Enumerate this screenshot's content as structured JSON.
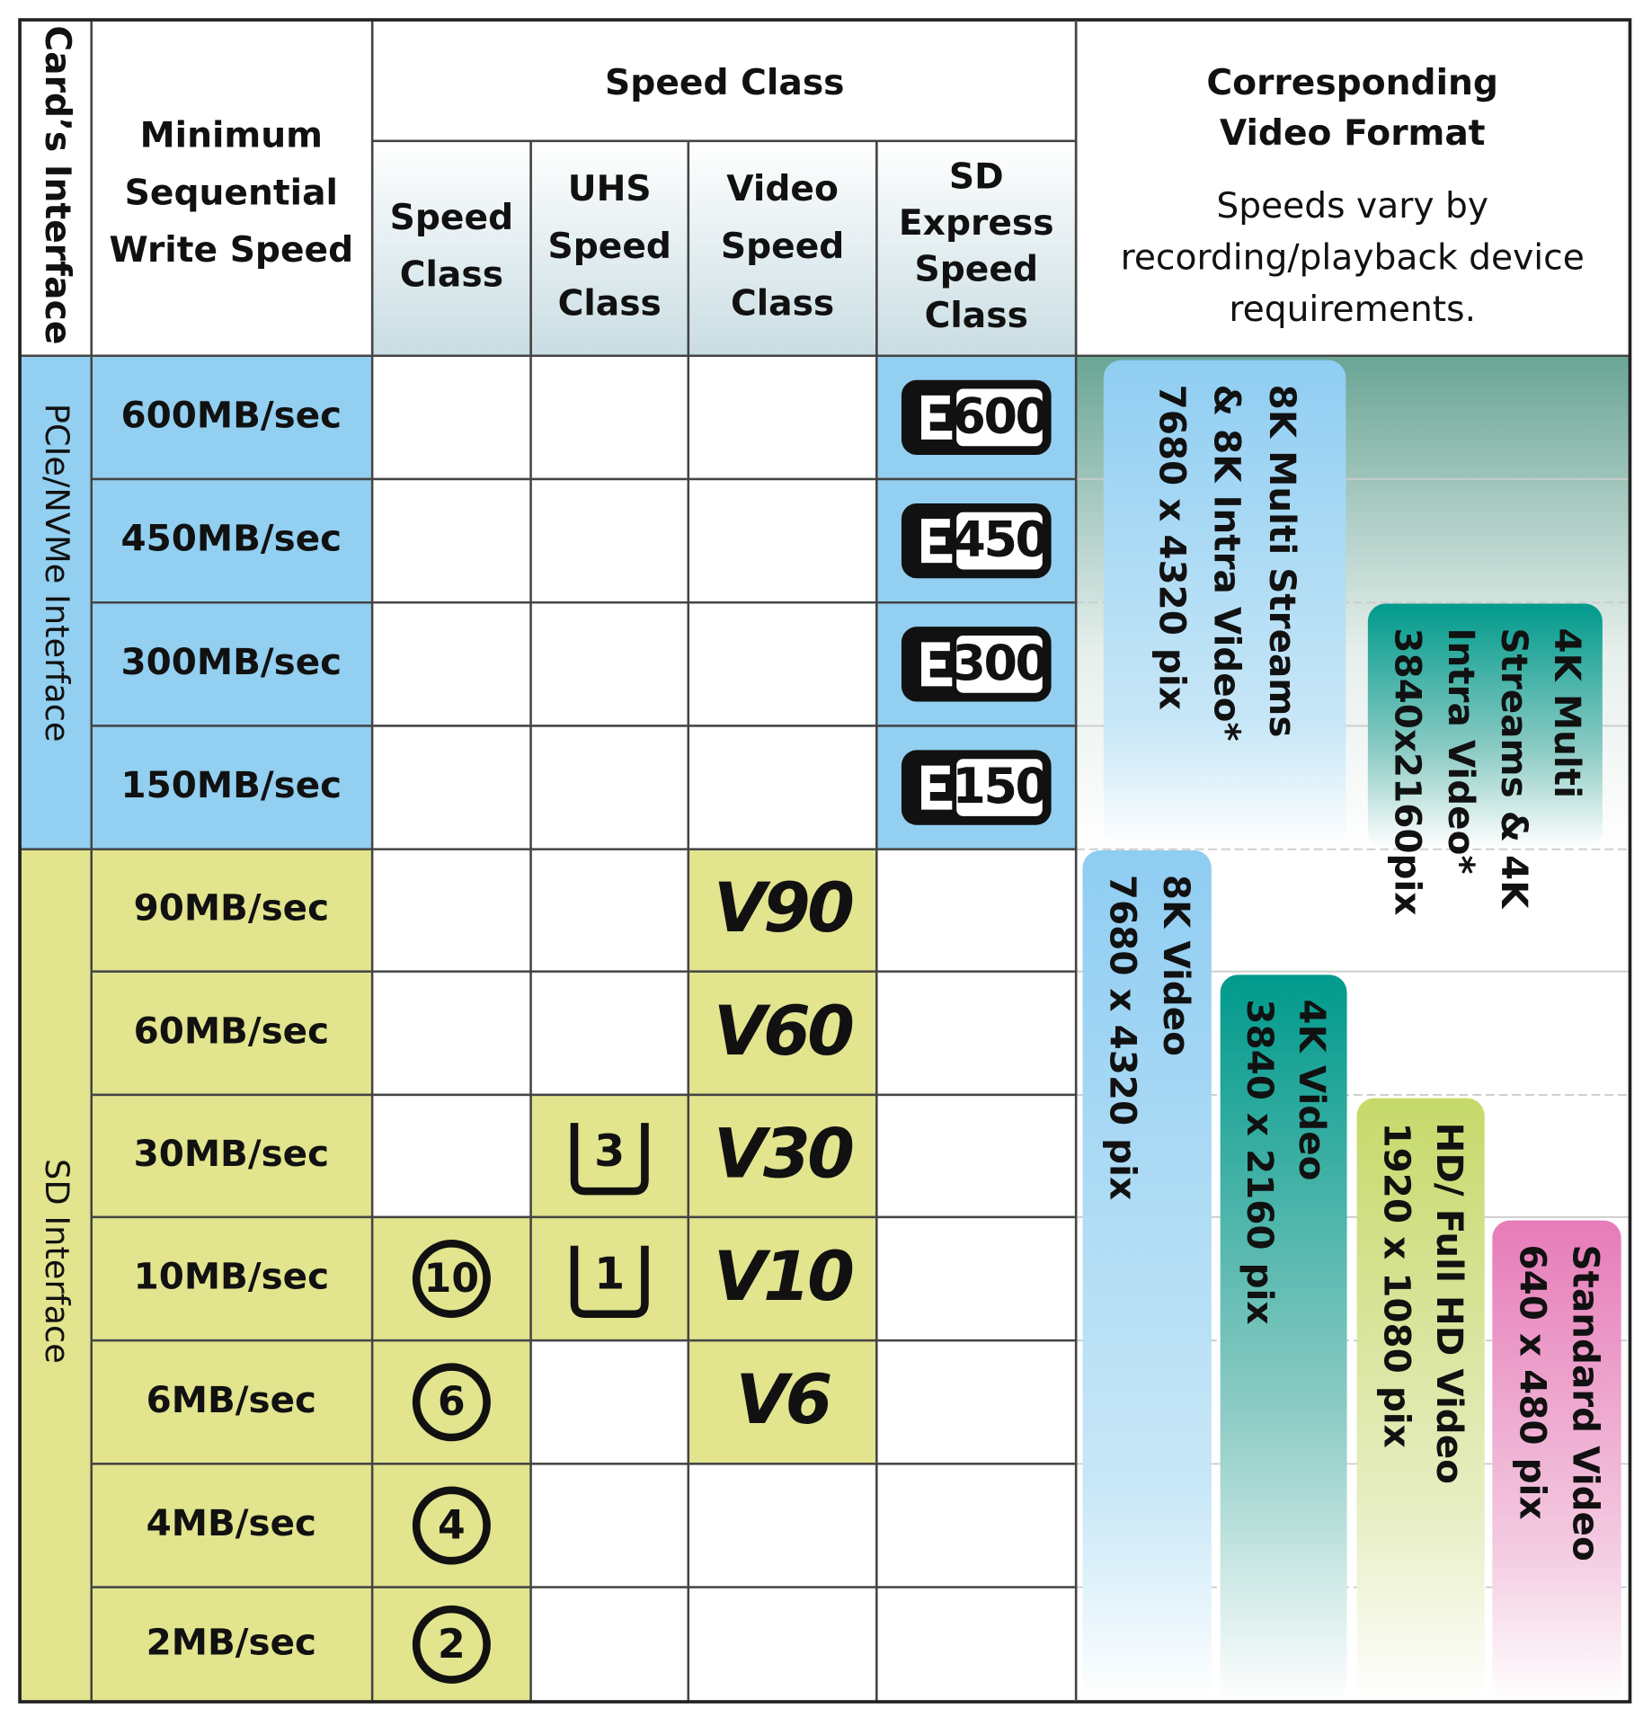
{
  "header": {
    "interface": "Card’s Interface",
    "min_write": [
      "Minimum",
      "Sequential",
      "Write Speed"
    ],
    "speed_class_group": "Speed Class",
    "columns": [
      [
        "Speed",
        "Class"
      ],
      [
        "UHS",
        "Speed",
        "Class"
      ],
      [
        "Video",
        "Speed",
        "Class"
      ],
      [
        "SD",
        "Express",
        "Speed",
        "Class"
      ]
    ],
    "video_title": [
      "Corresponding",
      "Video Format"
    ],
    "video_note": [
      "Speeds vary by",
      "recording/playback device",
      "requirements."
    ]
  },
  "interfaces": [
    {
      "label": "PCIe/NVMe Interface",
      "rows": [
        {
          "speed": "600MB/sec",
          "express": "600"
        },
        {
          "speed": "450MB/sec",
          "express": "450"
        },
        {
          "speed": "300MB/sec",
          "express": "300"
        },
        {
          "speed": "150MB/sec",
          "express": "150"
        }
      ]
    },
    {
      "label": "SD Interface",
      "rows": [
        {
          "speed": "90MB/sec",
          "video": "V90"
        },
        {
          "speed": "60MB/sec",
          "video": "V60"
        },
        {
          "speed": "30MB/sec",
          "uhs": "3",
          "video": "V30"
        },
        {
          "speed": "10MB/sec",
          "speed_class": "10",
          "uhs": "1",
          "video": "V10"
        },
        {
          "speed": "6MB/sec",
          "speed_class": "6",
          "video": "V6"
        },
        {
          "speed": "4MB/sec",
          "speed_class": "4"
        },
        {
          "speed": "2MB/sec",
          "speed_class": "2"
        }
      ]
    }
  ],
  "video_formats": [
    {
      "label": [
        "8K Multi Streams",
        "& 8K Intra Video*",
        "7680 x 4320 pix"
      ]
    },
    {
      "label": [
        "4K Multi",
        "Streams  & 4K",
        "Intra Video*",
        "3840x2160pix"
      ]
    },
    {
      "label": [
        "8K Video",
        "7680 x 4320 pix"
      ]
    },
    {
      "label": [
        "4K Video",
        "3840 x 2160 pix"
      ]
    },
    {
      "label": [
        "HD/ Full HD Video",
        "1920 x 1080 pix"
      ]
    },
    {
      "label": [
        "Standard Video",
        "640 x 480 pix"
      ]
    }
  ]
}
